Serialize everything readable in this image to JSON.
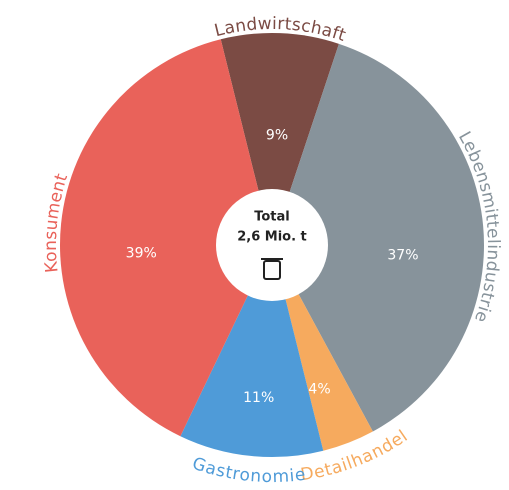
{
  "chart_data": {
    "type": "donut",
    "categories": [
      "Landwirtschaft",
      "Lebensmittelindustrie",
      "Detailhandel",
      "Gastronomie",
      "Konsument"
    ],
    "values": [
      9,
      37,
      4,
      11,
      39
    ],
    "value_labels": [
      "9%",
      "37%",
      "4%",
      "11%",
      "39%"
    ],
    "colors": [
      "#7b4b44",
      "#87939b",
      "#f6aa5e",
      "#4f9bd8",
      "#e9625a"
    ],
    "center_label": [
      "Total",
      "2,6 Mio. t"
    ]
  }
}
